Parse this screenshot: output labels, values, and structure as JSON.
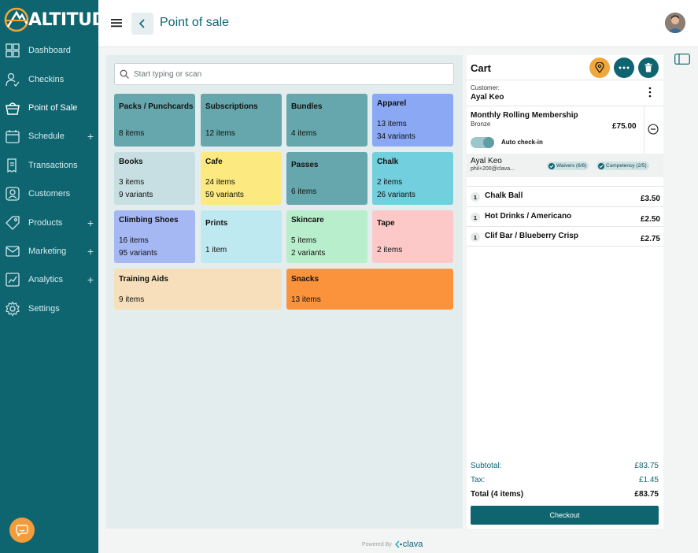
{
  "brand": {
    "logo_text": "ALTITUDE"
  },
  "sidebar": {
    "items": [
      {
        "label": "Dashboard",
        "icon": "dashboard-icon",
        "expandable": false,
        "active": false
      },
      {
        "label": "Checkins",
        "icon": "checkins-icon",
        "expandable": false,
        "active": false
      },
      {
        "label": "Point of Sale",
        "icon": "basket-icon",
        "expandable": false,
        "active": true
      },
      {
        "label": "Schedule",
        "icon": "calendar-icon",
        "expandable": true,
        "active": false
      },
      {
        "label": "Transactions",
        "icon": "receipt-icon",
        "expandable": false,
        "active": false
      },
      {
        "label": "Customers",
        "icon": "user-icon",
        "expandable": false,
        "active": false
      },
      {
        "label": "Products",
        "icon": "tag-icon",
        "expandable": true,
        "active": false
      },
      {
        "label": "Marketing",
        "icon": "mail-icon",
        "expandable": true,
        "active": false
      },
      {
        "label": "Analytics",
        "icon": "chart-icon",
        "expandable": true,
        "active": false
      },
      {
        "label": "Settings",
        "icon": "gear-icon",
        "expandable": false,
        "active": false
      }
    ],
    "expand_symbol": "+"
  },
  "header": {
    "title": "Point of sale"
  },
  "search": {
    "placeholder": "Start typing or scan",
    "value": ""
  },
  "categories": [
    {
      "name": "Packs / Punchcards",
      "line1": "8 items",
      "line2": "",
      "color": "#66a6ad"
    },
    {
      "name": "Subscriptions",
      "line1": "12 items",
      "line2": "",
      "color": "#66a6ad"
    },
    {
      "name": "Bundles",
      "line1": "4 items",
      "line2": "",
      "color": "#66a6ad"
    },
    {
      "name": "Apparel",
      "line1": "13 items",
      "line2": "34 variants",
      "color": "#8aa8f3"
    },
    {
      "name": "Books",
      "line1": "3 items",
      "line2": "9 variants",
      "color": "#c7dfe2"
    },
    {
      "name": "Cafe",
      "line1": "24 items",
      "line2": "59 variants",
      "color": "#fce980"
    },
    {
      "name": "Passes",
      "line1": "6 items",
      "line2": "",
      "color": "#66a6ad"
    },
    {
      "name": "Chalk",
      "line1": "2 items",
      "line2": "26 variants",
      "color": "#72cfdd"
    },
    {
      "name": "Climbing Shoes",
      "line1": "16 items",
      "line2": "95 variants",
      "color": "#a6b8f4"
    },
    {
      "name": "Prints",
      "line1": "1 item",
      "line2": "",
      "color": "#bfe9f1"
    },
    {
      "name": "Skincare",
      "line1": "5 items",
      "line2": "2 variants",
      "color": "#b9eecd"
    },
    {
      "name": "Tape",
      "line1": "2 items",
      "line2": "",
      "color": "#fcc8c8"
    },
    {
      "name": "Training Aids",
      "line1": "9 items",
      "line2": "",
      "color": "#f6dfba"
    },
    {
      "name": "Snacks",
      "line1": "13 items",
      "line2": "",
      "color": "#fb923c"
    }
  ],
  "cart": {
    "title": "Cart",
    "customer_label": "Customer:",
    "customer_name": "Ayal Keo",
    "membership": {
      "title": "Monthly Rolling Membership",
      "tier": "Bronze",
      "price": "£75.00",
      "auto_checkin_label": "Auto check-in",
      "auto_checkin": true
    },
    "member": {
      "name": "Ayal Keo",
      "email": "phil+200@clava...",
      "badges": [
        "Waivers (6/6)",
        "Competency (2/5)"
      ]
    },
    "items": [
      {
        "qty": "1",
        "name": "Chalk Ball",
        "price": "£3.50"
      },
      {
        "qty": "1",
        "name": "Hot Drinks / Americano",
        "price": "£2.50"
      },
      {
        "qty": "1",
        "name": "Clif Bar / Blueberry Crisp",
        "price": "£2.75"
      }
    ],
    "subtotal_label": "Subtotal:",
    "subtotal": "£83.75",
    "tax_label": "Tax:",
    "tax": "£1.45",
    "total_label": "Total (4 items)",
    "total": "£83.75",
    "checkout_label": "Checkout"
  },
  "footer": {
    "powered_by": "Powered By",
    "brand": "clava"
  },
  "colors": {
    "primary": "#0e6570",
    "accent": "#f0a83c",
    "panel_bg": "#e4eded"
  }
}
